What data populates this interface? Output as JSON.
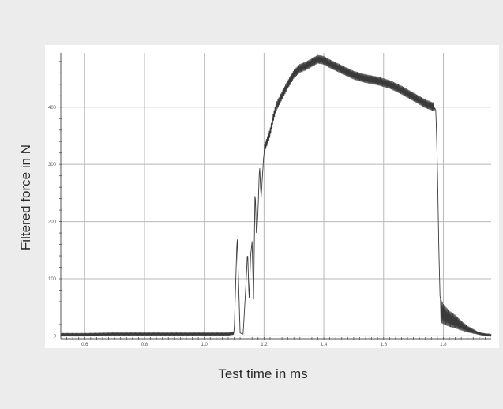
{
  "chart_data": {
    "type": "line",
    "title": "",
    "xlabel": "Test time in ms",
    "ylabel": "Filtered force in N",
    "xlim": [
      0.52,
      1.96
    ],
    "ylim": [
      -5,
      495
    ],
    "x_ticks": [
      0.6,
      0.8,
      1.0,
      1.2,
      1.4,
      1.6,
      1.8
    ],
    "x_tick_labels": [
      "0.6",
      "0.8",
      "1.0",
      "1.2",
      "1.4",
      "1.6",
      "1.8"
    ],
    "y_ticks": [
      0,
      100,
      200,
      300,
      400
    ],
    "y_tick_labels": [
      "0",
      "100",
      "200",
      "300",
      "400"
    ],
    "grid": true,
    "line_color": "#3a3a3a",
    "grid_color": "#b8b8b8",
    "series": [
      {
        "points": [
          [
            0.52,
            2
          ],
          [
            0.6,
            2
          ],
          [
            0.7,
            3
          ],
          [
            0.8,
            3
          ],
          [
            0.9,
            3
          ],
          [
            1.0,
            3
          ],
          [
            1.08,
            3
          ],
          [
            1.1,
            5
          ],
          [
            1.11,
            175
          ],
          [
            1.115,
            90
          ],
          [
            1.12,
            5
          ],
          [
            1.13,
            3
          ],
          [
            1.14,
            95
          ],
          [
            1.145,
            150
          ],
          [
            1.15,
            60
          ],
          [
            1.155,
            140
          ],
          [
            1.16,
            165
          ],
          [
            1.165,
            60
          ],
          [
            1.17,
            260
          ],
          [
            1.175,
            170
          ],
          [
            1.18,
            220
          ],
          [
            1.185,
            300
          ],
          [
            1.19,
            240
          ],
          [
            1.2,
            325
          ],
          [
            1.21,
            340
          ],
          [
            1.22,
            355
          ],
          [
            1.23,
            380
          ],
          [
            1.24,
            400
          ],
          [
            1.26,
            420
          ],
          [
            1.28,
            440
          ],
          [
            1.3,
            458
          ],
          [
            1.32,
            468
          ],
          [
            1.34,
            472
          ],
          [
            1.36,
            478
          ],
          [
            1.38,
            484
          ],
          [
            1.4,
            482
          ],
          [
            1.42,
            476
          ],
          [
            1.46,
            466
          ],
          [
            1.5,
            456
          ],
          [
            1.54,
            450
          ],
          [
            1.58,
            446
          ],
          [
            1.62,
            440
          ],
          [
            1.66,
            430
          ],
          [
            1.7,
            418
          ],
          [
            1.74,
            406
          ],
          [
            1.77,
            400
          ],
          [
            1.775,
            395
          ],
          [
            1.78,
            300
          ],
          [
            1.785,
            150
          ],
          [
            1.79,
            45
          ],
          [
            1.8,
            38
          ],
          [
            1.82,
            30
          ],
          [
            1.84,
            25
          ],
          [
            1.86,
            18
          ],
          [
            1.88,
            12
          ],
          [
            1.9,
            8
          ],
          [
            1.92,
            4
          ],
          [
            1.94,
            2
          ],
          [
            1.96,
            1
          ]
        ]
      }
    ]
  }
}
